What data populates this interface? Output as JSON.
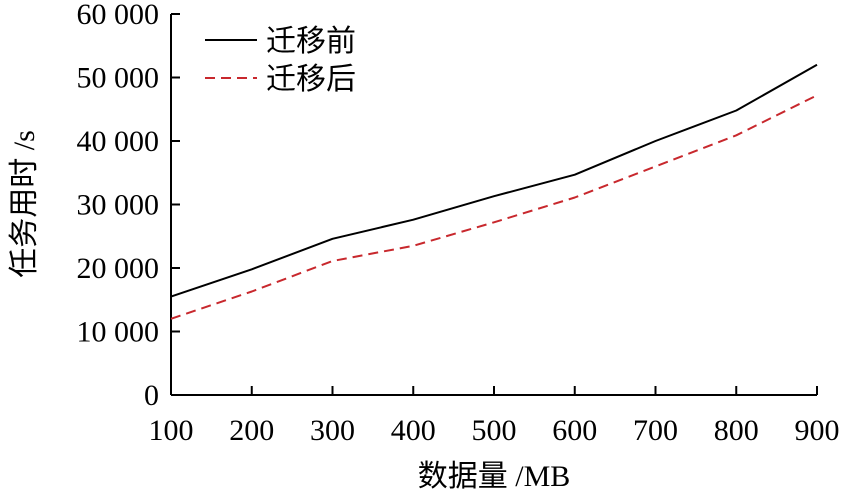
{
  "chart_data": {
    "type": "line",
    "x": [
      100,
      200,
      300,
      400,
      500,
      600,
      700,
      800,
      900
    ],
    "xticks": [
      "100",
      "200",
      "300",
      "400",
      "500",
      "600",
      "700",
      "800",
      "900"
    ],
    "yticks": [
      "0",
      "10 000",
      "20 000",
      "30 000",
      "40 000",
      "50 000",
      "60 000"
    ],
    "ytick_values": [
      0,
      10000,
      20000,
      30000,
      40000,
      50000,
      60000
    ],
    "xlim": [
      100,
      900
    ],
    "ylim": [
      0,
      60000
    ],
    "xlabel": "数据量 /MB",
    "ylabel": "任务用时 /s",
    "grid": false,
    "legend_position": "top-left",
    "series": [
      {
        "name": "迁移前",
        "color": "#000000",
        "style": "solid",
        "values": [
          15500,
          19800,
          24600,
          27600,
          31300,
          34700,
          40000,
          44800,
          52000
        ]
      },
      {
        "name": "迁移后",
        "color": "#c8282d",
        "style": "dashed",
        "values": [
          12000,
          16300,
          21100,
          23500,
          27200,
          31100,
          36000,
          40900,
          47200
        ]
      }
    ]
  }
}
